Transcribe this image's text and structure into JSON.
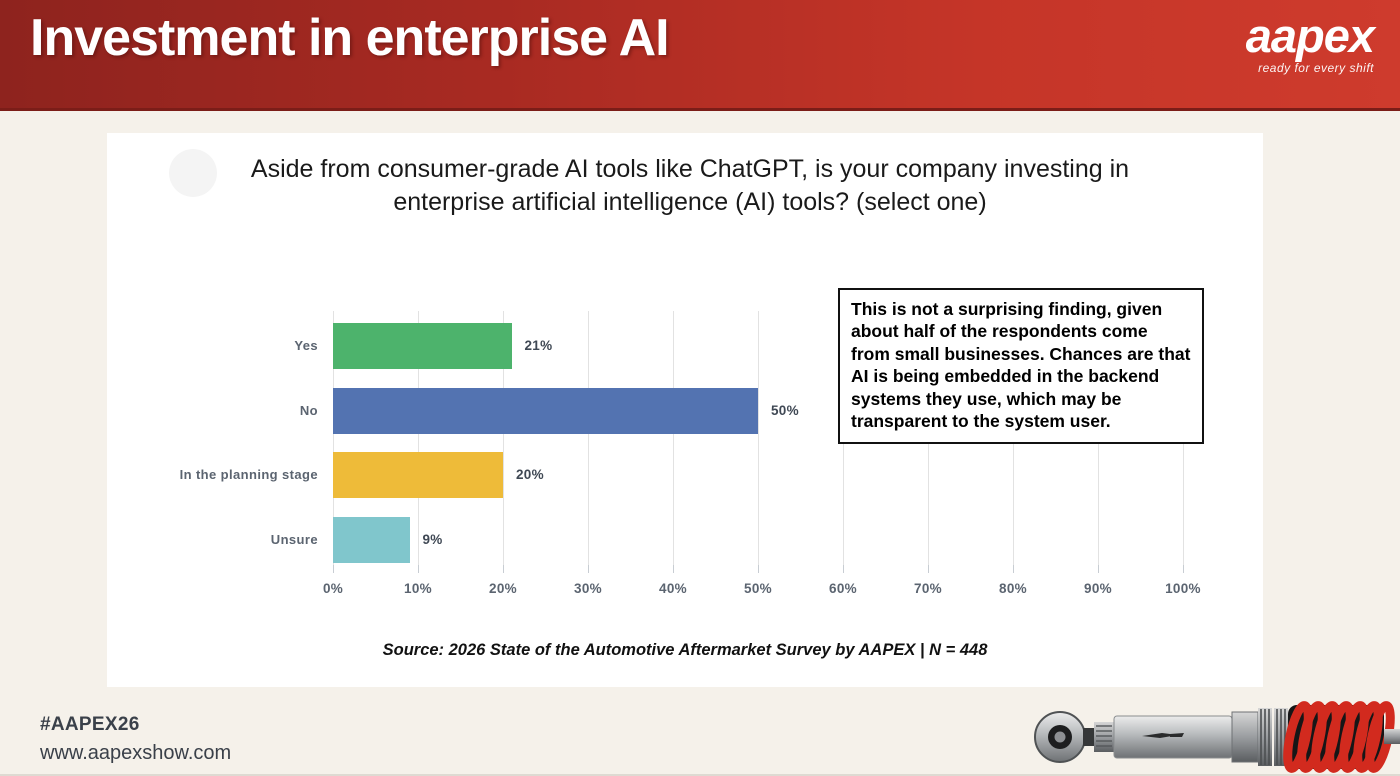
{
  "header": {
    "title": "Investment in enterprise AI",
    "logo_text": "aapex",
    "logo_tagline": "ready for every shift"
  },
  "chart_data": {
    "type": "bar",
    "orientation": "horizontal",
    "title": "Aside from consumer-grade AI tools like ChatGPT, is your company investing in enterprise artificial intelligence (AI) tools? (select one)",
    "title_line1": "Aside from consumer-grade AI tools like ChatGPT, is your company investing in",
    "title_line2": "enterprise artificial intelligence (AI) tools? (select one)",
    "categories": [
      "Yes",
      "No",
      "In the planning stage",
      "Unsure"
    ],
    "values": [
      21,
      50,
      20,
      9
    ],
    "value_labels": [
      "21%",
      "50%",
      "20%",
      "9%"
    ],
    "bar_colors": [
      "#4db36c",
      "#5373b1",
      "#eebb39",
      "#80c6cc"
    ],
    "x_ticks": [
      "0%",
      "10%",
      "20%",
      "30%",
      "40%",
      "50%",
      "60%",
      "70%",
      "80%",
      "90%",
      "100%"
    ],
    "xlim": [
      0,
      100
    ],
    "grid": true,
    "legend": "none"
  },
  "callout": {
    "text": "This is not a surprising finding, given about half of the respondents come from small businesses. Chances are that AI is being embedded in the backend systems they use, which may be transparent to the system user."
  },
  "source_text": "Source: 2026 State of the Automotive Aftermarket Survey by AAPEX  | N = 448",
  "footer": {
    "hashtag": "#AAPEX26",
    "website": "www.aapexshow.com"
  },
  "colors": {
    "header_gradient_left": "#8e231e",
    "header_gradient_right": "#ce3b2d",
    "page_background": "#f5f1ea",
    "card_background": "#ffffff",
    "axis_text": "#5b6470",
    "gridline": "#e2e2e2",
    "callout_border": "#111111"
  }
}
